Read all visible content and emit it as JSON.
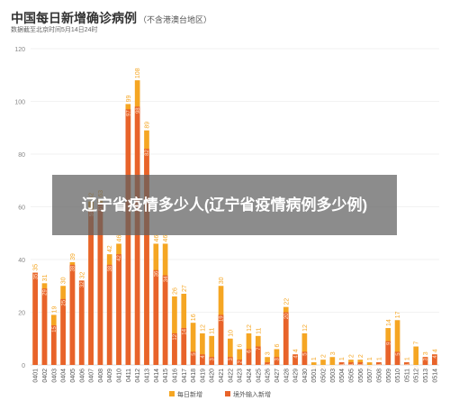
{
  "header": {
    "title": "中国每日新增确诊病例",
    "subtitle": "（不含港澳台地区）",
    "source": "数据截至北京时间5月14日24时"
  },
  "overlay": {
    "text": "辽宁省疫情多少人(辽宁省疫情病例多少例)"
  },
  "colors": {
    "total": "#F5A623",
    "imported": "#E8632A",
    "grid": "#E6E6E6",
    "axis_text": "#888888"
  },
  "chart_data": {
    "type": "bar",
    "title": "中国每日新增确诊病例",
    "xlabel": "",
    "ylabel": "",
    "ylim": [
      0,
      120
    ],
    "yticks": [
      0,
      20,
      40,
      60,
      80,
      100,
      120
    ],
    "grid": true,
    "legend_position": "bottom",
    "categories": [
      "0401",
      "0402",
      "0403",
      "0404",
      "0405",
      "0406",
      "0407",
      "0408",
      "0409",
      "0410",
      "0411",
      "0412",
      "0413",
      "0414",
      "0415",
      "0416",
      "0417",
      "0418",
      "0419",
      "0420",
      "0421",
      "0422",
      "0423",
      "0424",
      "0425",
      "0426",
      "0427",
      "0428",
      "0429",
      "0430",
      "0501",
      "0502",
      "0503",
      "0504",
      "0505",
      "0506",
      "0507",
      "0508",
      "0509",
      "0510",
      "0511",
      "0512",
      "0513",
      "0514"
    ],
    "series": [
      {
        "name": "每日新增",
        "color": "#F5A623",
        "values": [
          35,
          31,
          19,
          30,
          39,
          32,
          62,
          63,
          42,
          46,
          99,
          108,
          89,
          46,
          46,
          26,
          27,
          16,
          12,
          11,
          30,
          10,
          6,
          12,
          11,
          3,
          6,
          22,
          4,
          12,
          1,
          2,
          3,
          1,
          2,
          2,
          1,
          1,
          14,
          17,
          1,
          7,
          3,
          4
        ],
        "labels": [
          "35",
          "31",
          "19",
          "30",
          "39",
          "32",
          "62",
          "63",
          "42",
          "46",
          "99",
          "108",
          "89",
          "46",
          "46",
          "26",
          "27",
          "16",
          "12",
          "11",
          "30",
          "10",
          "6",
          "12",
          "11",
          "3",
          "6",
          "22",
          "4",
          "12",
          "1",
          "2",
          "3",
          "1",
          "2",
          "2",
          "1",
          "1",
          "14",
          "17",
          "1",
          "7",
          "3",
          "4"
        ]
      },
      {
        "name": "境外输入新增",
        "color": "#E8632A",
        "values": [
          35,
          29,
          15,
          25,
          38,
          32,
          59,
          61,
          38,
          42,
          97,
          98,
          82,
          36,
          34,
          12,
          14,
          5,
          4,
          3,
          19,
          3,
          2,
          6,
          7,
          1,
          3,
          20,
          4,
          5,
          0,
          0,
          0,
          1,
          1,
          1,
          0,
          1,
          9,
          5,
          1,
          0,
          3,
          4
        ],
        "labels": [
          "35",
          "29",
          "15",
          "25",
          "38",
          "32",
          "59",
          "61",
          "38",
          "42",
          "97",
          "98",
          "82",
          "36",
          "34",
          "12",
          "14",
          "5",
          "4",
          "3",
          "19",
          "3",
          "2",
          "6",
          "7",
          "1",
          "3",
          "20",
          "4",
          "5",
          "0",
          "0",
          "0",
          "1",
          "1",
          "1",
          "0",
          "1",
          "9",
          "5",
          "1",
          "0",
          "3",
          "4"
        ]
      }
    ]
  }
}
